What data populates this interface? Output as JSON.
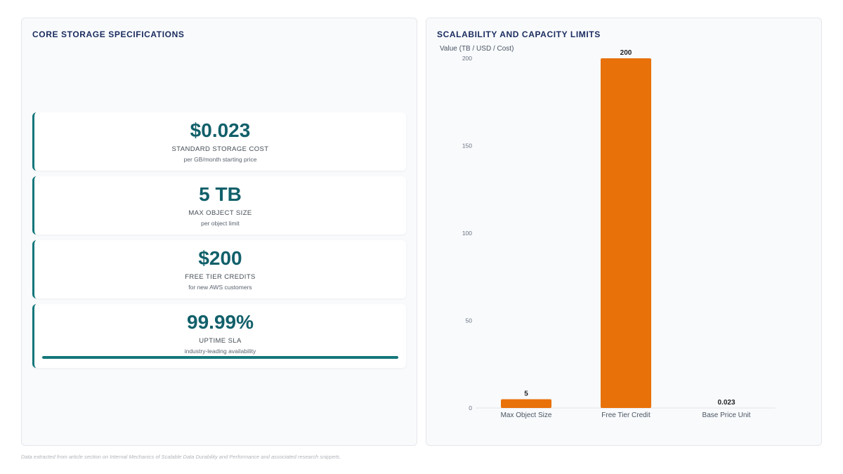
{
  "left_panel": {
    "title": "CORE STORAGE SPECIFICATIONS",
    "cards": [
      {
        "value": "$0.023",
        "label": "STANDARD STORAGE COST",
        "sub": "per GB/month starting price"
      },
      {
        "value": "5 TB",
        "label": "MAX OBJECT SIZE",
        "sub": "per object limit"
      },
      {
        "value": "$200",
        "label": "FREE TIER CREDITS",
        "sub": "for new AWS customers"
      },
      {
        "value": "99.99%",
        "label": "UPTIME SLA",
        "sub": "industry-leading availability",
        "progress_fraction": 0.9999
      }
    ]
  },
  "right_panel": {
    "title": "SCALABILITY AND CAPACITY LIMITS"
  },
  "chart_data": {
    "type": "bar",
    "title": "SCALABILITY AND CAPACITY LIMITS",
    "ylabel": "Value (TB / USD / Cost)",
    "xlabel": "",
    "categories": [
      "Max Object Size",
      "Free Tier Credit",
      "Base Price Unit"
    ],
    "values": [
      5,
      200,
      0.023
    ],
    "data_labels": [
      "5",
      "200",
      "0.023"
    ],
    "ylim": [
      0,
      200
    ],
    "yticks": [
      0,
      50,
      100,
      150,
      200
    ],
    "grid": false,
    "bar_color": "#e8710a"
  },
  "colors": {
    "accent": "#14777a",
    "value_text": "#11606a",
    "title_text": "#1a2b5e",
    "bar": "#e8710a"
  },
  "footnote": "Data extracted from article section on Internal Mechanics of Scalable Data Durability and Performance and associated research snippets."
}
